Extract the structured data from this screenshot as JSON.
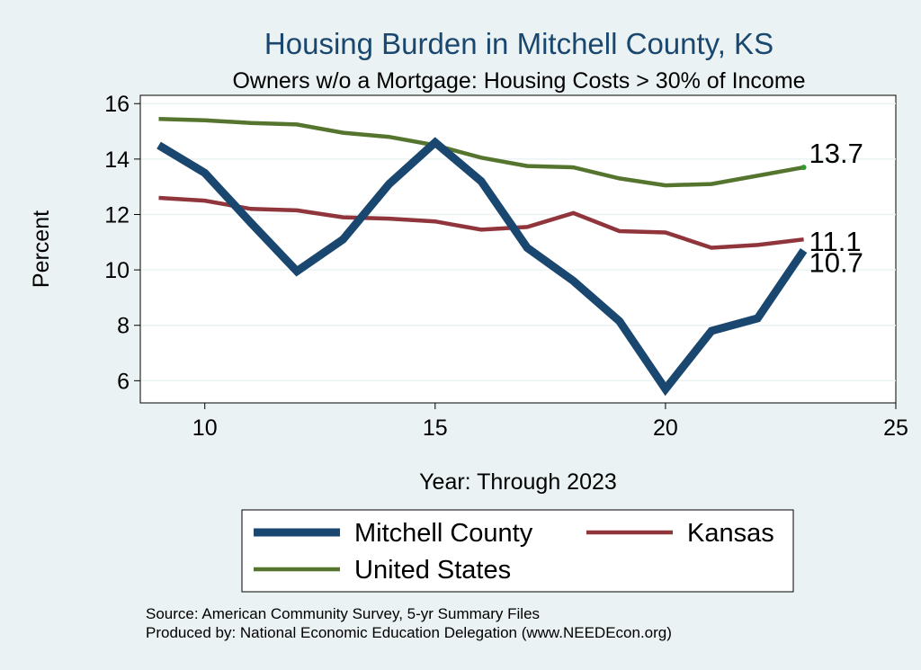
{
  "chart_data": {
    "type": "line",
    "title": "Housing Burden in Mitchell County, KS",
    "subtitle": "Owners w/o a Mortgage: Housing Costs > 30% of Income",
    "xlabel": "Year: Through 2023",
    "ylabel": "Percent",
    "xlim": [
      8.6,
      25
    ],
    "ylim": [
      5.2,
      16.3
    ],
    "x_ticks": [
      10,
      15,
      20,
      25
    ],
    "y_ticks": [
      6,
      8,
      10,
      12,
      14,
      16
    ],
    "grid": true,
    "legend_position": "bottom",
    "x": [
      9,
      10,
      11,
      12,
      13,
      14,
      15,
      16,
      17,
      18,
      19,
      20,
      21,
      22,
      23
    ],
    "series": [
      {
        "name": "Mitchell County",
        "color": "#1a476f",
        "values": [
          14.5,
          13.5,
          11.7,
          9.95,
          11.1,
          13.1,
          14.6,
          13.2,
          10.8,
          9.6,
          8.15,
          5.7,
          7.8,
          8.25,
          10.7
        ],
        "end_label": "10.7"
      },
      {
        "name": "Kansas",
        "color": "#90353b",
        "values": [
          12.6,
          12.5,
          12.2,
          12.15,
          11.9,
          11.85,
          11.75,
          11.45,
          11.55,
          12.05,
          11.4,
          11.35,
          10.8,
          10.9,
          11.1
        ],
        "end_label": "11.1"
      },
      {
        "name": "United States",
        "color": "#55752f",
        "values": [
          15.45,
          15.4,
          15.3,
          15.25,
          14.95,
          14.8,
          14.5,
          14.05,
          13.75,
          13.7,
          13.3,
          13.05,
          13.1,
          13.4,
          13.7
        ],
        "end_label": "13.7"
      }
    ]
  },
  "notes": {
    "source": "Source: American Community Survey, 5-yr Summary Files",
    "produced_by": "Produced by: National Economic Education Delegation (www.NEEDEcon.org)"
  }
}
